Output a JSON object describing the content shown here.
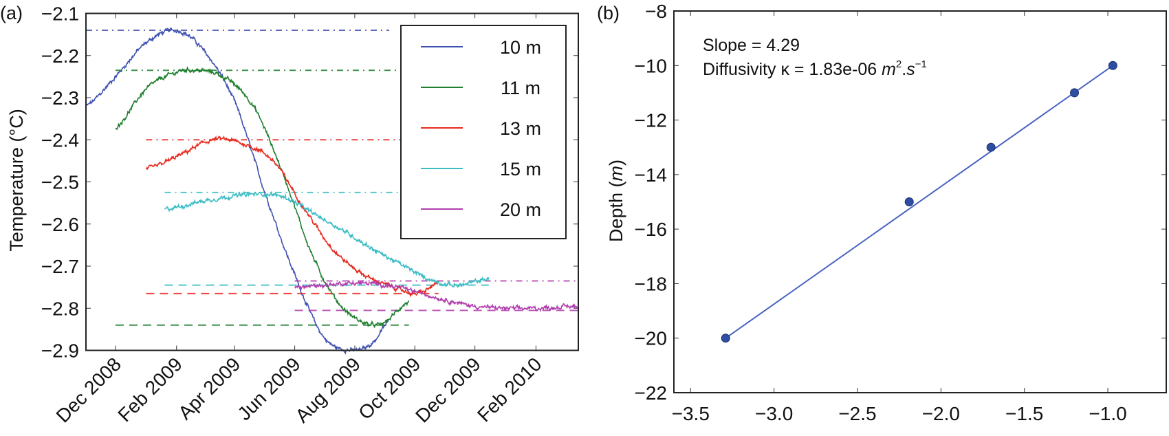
{
  "chart_data": [
    {
      "panel_label": "(a)",
      "type": "line",
      "title": "",
      "xlabel": "",
      "ylabel": "Temperature (°C)",
      "xlim": [
        "2008-11-01",
        "2010-03-16"
      ],
      "ylim": [
        -2.9,
        -2.1
      ],
      "grid": false,
      "legend_position": "top-right",
      "yticks": [
        -2.1,
        -2.2,
        -2.3,
        -2.4,
        -2.5,
        -2.6,
        -2.7,
        -2.8,
        -2.9
      ],
      "ytick_labels": [
        "−2.1",
        "−2.2",
        "−2.3",
        "−2.4",
        "−2.5",
        "−2.6",
        "−2.7",
        "−2.8",
        "−2.9"
      ],
      "xticks": [
        "2008-12-01",
        "2009-02-01",
        "2009-04-01",
        "2009-06-01",
        "2009-08-01",
        "2009-10-01",
        "2009-12-01",
        "2010-02-01"
      ],
      "xtick_labels": [
        "Dec 2008",
        "Feb 2009",
        "Apr 2009",
        "Jun 2009",
        "Aug 2009",
        "Oct 2009",
        "Dec 2009",
        "Feb 2010"
      ],
      "series": [
        {
          "name": "10 m",
          "color": "#3f51b0",
          "points": [
            [
              "2008-11-01",
              -2.32
            ],
            [
              "2008-12-01",
              -2.25
            ],
            [
              "2009-01-01",
              -2.17
            ],
            [
              "2009-02-01",
              -2.14
            ],
            [
              "2009-03-01",
              -2.19
            ],
            [
              "2009-04-01",
              -2.31
            ],
            [
              "2009-05-01",
              -2.52
            ],
            [
              "2009-06-01",
              -2.72
            ],
            [
              "2009-07-01",
              -2.87
            ],
            [
              "2009-08-01",
              -2.9
            ],
            [
              "2009-08-20",
              -2.88
            ],
            [
              "2009-09-05",
              -2.83
            ]
          ],
          "max_line": {
            "value": -2.14,
            "from": "2008-11-01",
            "to": "2009-09-05",
            "style": "dash-dot"
          },
          "min_line": {
            "value": -2.9,
            "from": "2008-11-01",
            "to": "2009-09-05",
            "style": "dashed"
          }
        },
        {
          "name": "11 m",
          "color": "#1f7f2e",
          "points": [
            [
              "2008-12-01",
              -2.37
            ],
            [
              "2009-01-01",
              -2.28
            ],
            [
              "2009-02-01",
              -2.24
            ],
            [
              "2009-02-20",
              -2.235
            ],
            [
              "2009-03-20",
              -2.25
            ],
            [
              "2009-04-20",
              -2.32
            ],
            [
              "2009-05-20",
              -2.48
            ],
            [
              "2009-06-20",
              -2.68
            ],
            [
              "2009-07-20",
              -2.8
            ],
            [
              "2009-08-25",
              -2.84
            ],
            [
              "2009-09-25",
              -2.785
            ]
          ],
          "max_line": {
            "value": -2.235,
            "from": "2008-12-01",
            "to": "2009-09-25",
            "style": "dash-dot"
          },
          "min_line": {
            "value": -2.84,
            "from": "2008-12-01",
            "to": "2009-09-25",
            "style": "dashed"
          }
        },
        {
          "name": "13 m",
          "color": "#e8281c",
          "points": [
            [
              "2009-01-01",
              -2.47
            ],
            [
              "2009-02-01",
              -2.44
            ],
            [
              "2009-03-10",
              -2.4
            ],
            [
              "2009-04-10",
              -2.41
            ],
            [
              "2009-05-10",
              -2.45
            ],
            [
              "2009-06-10",
              -2.56
            ],
            [
              "2009-07-10",
              -2.66
            ],
            [
              "2009-08-10",
              -2.72
            ],
            [
              "2009-09-10",
              -2.75
            ],
            [
              "2009-10-05",
              -2.765
            ],
            [
              "2009-10-25",
              -2.74
            ]
          ],
          "max_line": {
            "value": -2.4,
            "from": "2009-01-01",
            "to": "2009-10-25",
            "style": "dash-dot"
          },
          "min_line": {
            "value": -2.765,
            "from": "2009-01-01",
            "to": "2009-10-25",
            "style": "dashed"
          }
        },
        {
          "name": "15 m",
          "color": "#3cbcc4",
          "points": [
            [
              "2009-01-20",
              -2.565
            ],
            [
              "2009-03-01",
              -2.545
            ],
            [
              "2009-04-15",
              -2.53
            ],
            [
              "2009-05-20",
              -2.535
            ],
            [
              "2009-06-20",
              -2.575
            ],
            [
              "2009-07-20",
              -2.615
            ],
            [
              "2009-08-20",
              -2.66
            ],
            [
              "2009-09-20",
              -2.7
            ],
            [
              "2009-10-20",
              -2.735
            ],
            [
              "2009-11-15",
              -2.745
            ],
            [
              "2009-12-15",
              -2.73
            ]
          ],
          "max_line": {
            "value": -2.525,
            "from": "2009-01-20",
            "to": "2009-12-15",
            "style": "dash-dot"
          },
          "min_line": {
            "value": -2.745,
            "from": "2009-01-20",
            "to": "2009-12-15",
            "style": "dashed"
          }
        },
        {
          "name": "20 m",
          "color": "#b23fae",
          "points": [
            [
              "2009-06-01",
              -2.75
            ],
            [
              "2009-07-01",
              -2.745
            ],
            [
              "2009-08-01",
              -2.74
            ],
            [
              "2009-09-01",
              -2.745
            ],
            [
              "2009-10-01",
              -2.76
            ],
            [
              "2009-11-01",
              -2.78
            ],
            [
              "2009-12-01",
              -2.795
            ],
            [
              "2010-01-01",
              -2.8
            ],
            [
              "2010-02-01",
              -2.8
            ],
            [
              "2010-03-16",
              -2.795
            ]
          ],
          "max_line": {
            "value": -2.735,
            "from": "2009-06-01",
            "to": "2010-03-16",
            "style": "dash-dot"
          },
          "min_line": {
            "value": -2.805,
            "from": "2009-06-01",
            "to": "2010-03-16",
            "style": "dashed"
          }
        }
      ]
    },
    {
      "panel_label": "(b)",
      "type": "scatter",
      "title": "",
      "xlabel": "",
      "ylabel": "Depth (m)",
      "xlim": [
        -3.6,
        -0.65
      ],
      "ylim": [
        -22,
        -8
      ],
      "grid": false,
      "xticks": [
        -3.5,
        -3.0,
        -2.5,
        -2.0,
        -1.5,
        -1.0
      ],
      "xtick_labels": [
        "−3.5",
        "−3.0",
        "−2.5",
        "−2.0",
        "−1.5",
        "−1.0"
      ],
      "yticks": [
        -8,
        -10,
        -12,
        -14,
        -16,
        -18,
        -20,
        -22
      ],
      "ytick_labels": [
        "−8",
        "−10",
        "−12",
        "−14",
        "−16",
        "−18",
        "−20",
        "−22"
      ],
      "marker_color": "#2e4ea3",
      "line_color": "#4a63c2",
      "points": [
        {
          "x": -3.29,
          "y": -20
        },
        {
          "x": -2.19,
          "y": -15
        },
        {
          "x": -1.7,
          "y": -13
        },
        {
          "x": -1.2,
          "y": -11
        },
        {
          "x": -0.97,
          "y": -10
        }
      ],
      "fit_line": {
        "x": [
          -3.29,
          -0.97
        ],
        "y": [
          -20,
          -10
        ]
      },
      "annotations": {
        "slope": "Slope = 4.29",
        "diffusivity_prefix": "Diffusivity κ = 1.83e-06 ",
        "diffusivity_unit_m": "m",
        "diffusivity_unit_m_exp": "2",
        "diffusivity_unit_dot": ".",
        "diffusivity_unit_s": "s",
        "diffusivity_unit_s_exp": "−1"
      },
      "slope_value": 4.29,
      "diffusivity_value": 1.83e-06
    }
  ]
}
